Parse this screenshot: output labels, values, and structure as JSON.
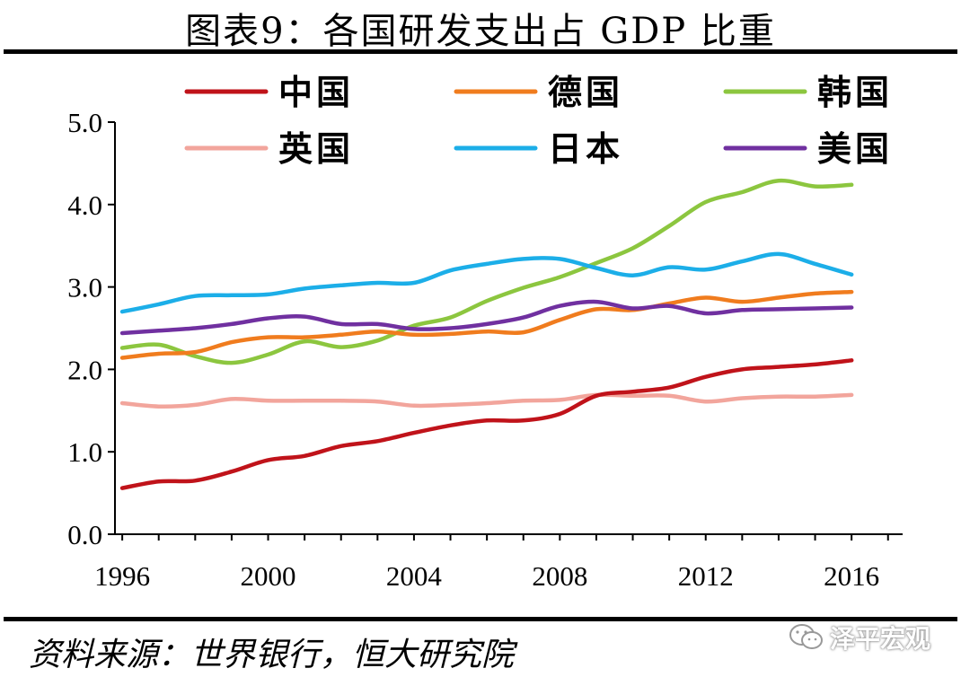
{
  "title": "图表9：各国研发支出占 GDP 比重",
  "source": "资料来源：世界银行，恒大研究院",
  "watermark": "泽平宏观",
  "watermark_icon": "wechat-icon",
  "chart_data": {
    "type": "line",
    "title": "图表9：各国研发支出占 GDP 比重",
    "xlabel": "",
    "ylabel": "",
    "xlim": [
      1995.8,
      2017.4
    ],
    "ylim": [
      0,
      5
    ],
    "yticks": [
      "0.0",
      "1.0",
      "2.0",
      "3.0",
      "4.0",
      "5.0"
    ],
    "xtick_labels": [
      "1996",
      "2000",
      "2004",
      "2008",
      "2012",
      "2016"
    ],
    "xtick_values": [
      1996,
      2000,
      2004,
      2008,
      2012,
      2016
    ],
    "x": [
      1996,
      1997,
      1998,
      1999,
      2000,
      2001,
      2002,
      2003,
      2004,
      2005,
      2006,
      2007,
      2008,
      2009,
      2010,
      2011,
      2012,
      2013,
      2014,
      2015,
      2016
    ],
    "legend_position": "top",
    "series": [
      {
        "name": "中国",
        "color": "#c0131a",
        "values": [
          0.56,
          0.64,
          0.65,
          0.76,
          0.9,
          0.95,
          1.07,
          1.13,
          1.23,
          1.32,
          1.38,
          1.38,
          1.46,
          1.68,
          1.73,
          1.78,
          1.91,
          2.0,
          2.03,
          2.06,
          2.11
        ]
      },
      {
        "name": "德国",
        "color": "#f07c1e",
        "values": [
          2.14,
          2.19,
          2.21,
          2.33,
          2.39,
          2.39,
          2.42,
          2.46,
          2.42,
          2.43,
          2.46,
          2.45,
          2.6,
          2.73,
          2.72,
          2.8,
          2.87,
          2.82,
          2.87,
          2.92,
          2.94
        ]
      },
      {
        "name": "韩国",
        "color": "#8cc63f",
        "values": [
          2.26,
          2.3,
          2.16,
          2.08,
          2.18,
          2.34,
          2.27,
          2.35,
          2.53,
          2.63,
          2.83,
          2.99,
          3.12,
          3.29,
          3.47,
          3.74,
          4.03,
          4.15,
          4.29,
          4.22,
          4.24
        ]
      },
      {
        "name": "英国",
        "color": "#f2a59c",
        "values": [
          1.59,
          1.55,
          1.57,
          1.64,
          1.62,
          1.62,
          1.62,
          1.61,
          1.56,
          1.57,
          1.59,
          1.62,
          1.63,
          1.69,
          1.68,
          1.68,
          1.61,
          1.65,
          1.67,
          1.67,
          1.69
        ]
      },
      {
        "name": "日本",
        "color": "#1caee8",
        "values": [
          2.7,
          2.79,
          2.89,
          2.9,
          2.91,
          2.98,
          3.02,
          3.05,
          3.05,
          3.2,
          3.28,
          3.34,
          3.34,
          3.23,
          3.14,
          3.24,
          3.21,
          3.31,
          3.4,
          3.28,
          3.15
        ]
      },
      {
        "name": "美国",
        "color": "#7030a0",
        "values": [
          2.44,
          2.47,
          2.5,
          2.55,
          2.62,
          2.64,
          2.55,
          2.55,
          2.49,
          2.5,
          2.55,
          2.63,
          2.77,
          2.82,
          2.74,
          2.77,
          2.68,
          2.72,
          2.73,
          2.74,
          2.75
        ]
      }
    ]
  }
}
